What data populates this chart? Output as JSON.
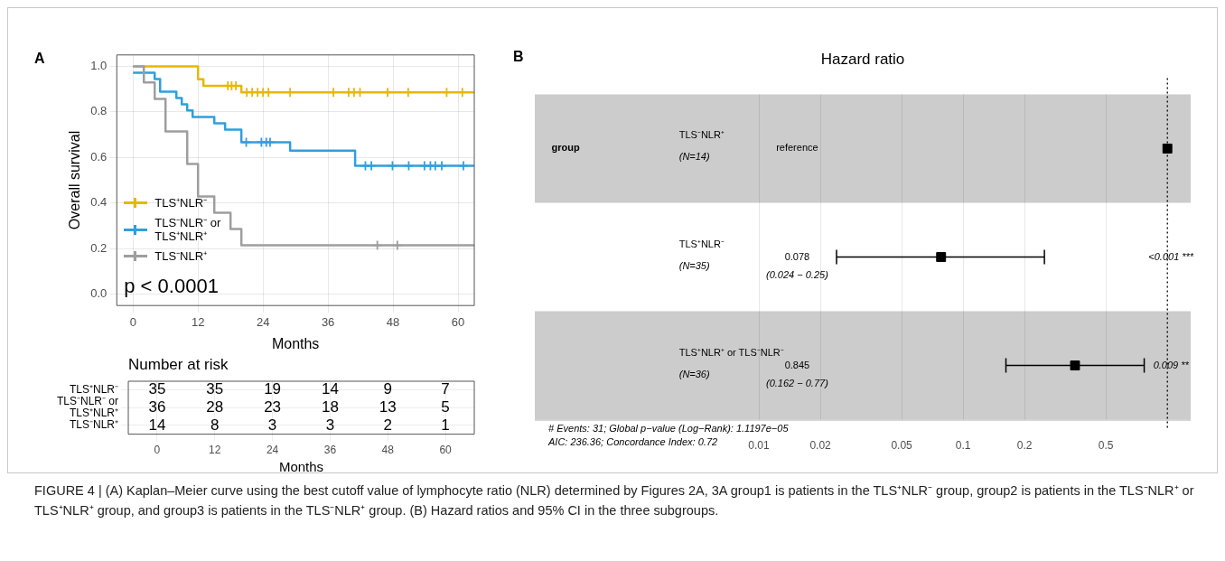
{
  "chart_data": [
    {
      "type": "step",
      "xlabel": "Months",
      "ylabel": "Overall survival",
      "xlim": [
        -3,
        63
      ],
      "xticks": [
        0,
        12,
        24,
        36,
        48,
        60
      ],
      "ylim": [
        -0.05,
        1.05
      ],
      "yticks": [
        {
          "value": 0,
          "label": "0.0"
        },
        {
          "value": 0.2,
          "label": "0.2"
        },
        {
          "value": 0.4,
          "label": "0.4"
        },
        {
          "value": 0.6,
          "label": "0.6"
        },
        {
          "value": 0.8,
          "label": "0.8"
        },
        {
          "value": 1,
          "label": "1.0"
        }
      ],
      "grid": true,
      "legend": "bottom left",
      "annotations": [
        "A",
        "p < 0.0001"
      ],
      "series": [
        {
          "name": "TLS⁺NLR⁻",
          "color": "#e7b800",
          "x": [
            0,
            12,
            13,
            20,
            63
          ],
          "values": [
            1,
            0.943,
            0.914,
            0.886,
            0.886
          ]
        },
        {
          "name": "TLS⁻NLR⁻ or TLS⁺NLR⁺",
          "color": "#2e9fdf",
          "x": [
            0,
            4,
            5,
            8,
            9,
            10,
            11,
            15,
            17,
            20,
            29,
            41,
            63
          ],
          "values": [
            0.972,
            0.944,
            0.889,
            0.861,
            0.833,
            0.806,
            0.778,
            0.75,
            0.722,
            0.667,
            0.63,
            0.563,
            0.563
          ]
        },
        {
          "name": "TLS⁻NLR⁺",
          "color": "#9e9e9e",
          "x": [
            0,
            2,
            4,
            6,
            10,
            12,
            15,
            18,
            20,
            63
          ],
          "values": [
            1,
            0.929,
            0.857,
            0.714,
            0.571,
            0.429,
            0.357,
            0.286,
            0.214,
            0.214
          ]
        },
        {
          "type": "scatter",
          "marker": "cross",
          "color": "#e7b800",
          "x": [
            17.5,
            18.2,
            19,
            21,
            22,
            23,
            24,
            25,
            29,
            37,
            39.8,
            40.8,
            41.9,
            47,
            50.8,
            57.9,
            60.8
          ],
          "values": [
            0.914,
            0.914,
            0.914,
            0.886,
            0.886,
            0.886,
            0.886,
            0.886,
            0.886,
            0.886,
            0.886,
            0.886,
            0.886,
            0.886,
            0.886,
            0.886,
            0.886
          ]
        },
        {
          "type": "scatter",
          "marker": "cross",
          "color": "#2e9fdf",
          "x": [
            20.9,
            23.7,
            24.6,
            25.3,
            42.9,
            44,
            47.9,
            50.9,
            53.8,
            54.9,
            55.8,
            57,
            61
          ],
          "values": [
            0.667,
            0.667,
            0.667,
            0.667,
            0.563,
            0.563,
            0.563,
            0.563,
            0.563,
            0.563,
            0.563,
            0.563,
            0.563
          ]
        },
        {
          "type": "scatter",
          "marker": "cross",
          "color": "#9e9e9e",
          "x": [
            45.1,
            48.8
          ],
          "values": [
            0.214,
            0.214
          ]
        }
      ]
    },
    {
      "type": "heatmap",
      "title": "Number at risk",
      "xlabel": "Months",
      "categories": [
        "0",
        "12",
        "24",
        "36",
        "48",
        "60"
      ],
      "y_categories": [
        "TLS⁺NLR⁻",
        "TLS⁻NLR⁻ or TLS⁺NLR⁺",
        "TLS⁻NLR⁺"
      ],
      "data_labels": true,
      "grid": true,
      "cells": [
        [
          35,
          35,
          19,
          14,
          9,
          7
        ],
        [
          36,
          28,
          23,
          18,
          13,
          5
        ],
        [
          14,
          8,
          3,
          3,
          2,
          1
        ]
      ]
    },
    {
      "type": "scatter",
      "title": "Hazard ratio",
      "orientation": "horizontal",
      "log": "x",
      "marker": "square",
      "grid": "x",
      "xlim": [
        0.0008,
        1.3
      ],
      "xticks": [
        0.01,
        0.02,
        0.05,
        0.1,
        0.2,
        0.5
      ],
      "categories": [
        "TLS⁻NLR⁺ (N=14)",
        "TLS⁺NLR⁻ (N=35)",
        "TLS⁺NLR⁺ or TLS⁻NLR⁻ (N=36)"
      ],
      "series": [
        {
          "color": "#000000",
          "values": [
            1,
            0.078,
            0.353
          ],
          "errors": [
            null,
            [
              0.024,
              0.25
            ],
            [
              0.162,
              0.77
            ]
          ]
        }
      ],
      "ref_lines": [
        {
          "axis": "x",
          "value": 1,
          "line_style": "dotted"
        }
      ],
      "bands": [
        {
          "axis": "y",
          "from": "TLS⁻NLR⁺ (N=14)",
          "to": "TLS⁻NLR⁺ (N=14)",
          "color": "#cccccc"
        },
        {
          "axis": "y",
          "from": "TLS⁺NLR⁺ or TLS⁻NLR⁻ (N=36)",
          "to": "TLS⁺NLR⁺ or TLS⁻NLR⁻ (N=36)",
          "color": "#cccccc"
        }
      ],
      "annotations": [
        "B",
        "group",
        "reference",
        "0.078\n(0.024 − 0.25)",
        "<0.001 ***",
        "0.845\n(0.162 − 0.77)",
        "0.009 **",
        "# Events: 31; Global p−value (Log−Rank): 1.1197e−05",
        "AIC: 236.36; Concordance Index: 0.72"
      ]
    },
    {
      "type": "other",
      "annotations": [
        "FIGURE 4 | (A) Kaplan–Meier curve using the best cutoff value of lymphocyte ratio (NLR) determined by Figures 2A, 3A group1 is patients in the TLS⁺NLR⁻ group, group2 is patients in the TLS⁻NLR⁺ or TLS⁺NLR⁺ group, and group3 is patients in the TLS⁻NLR⁺ group. (B) Hazard ratios and 95% CI in the three subgroups."
      ]
    }
  ]
}
